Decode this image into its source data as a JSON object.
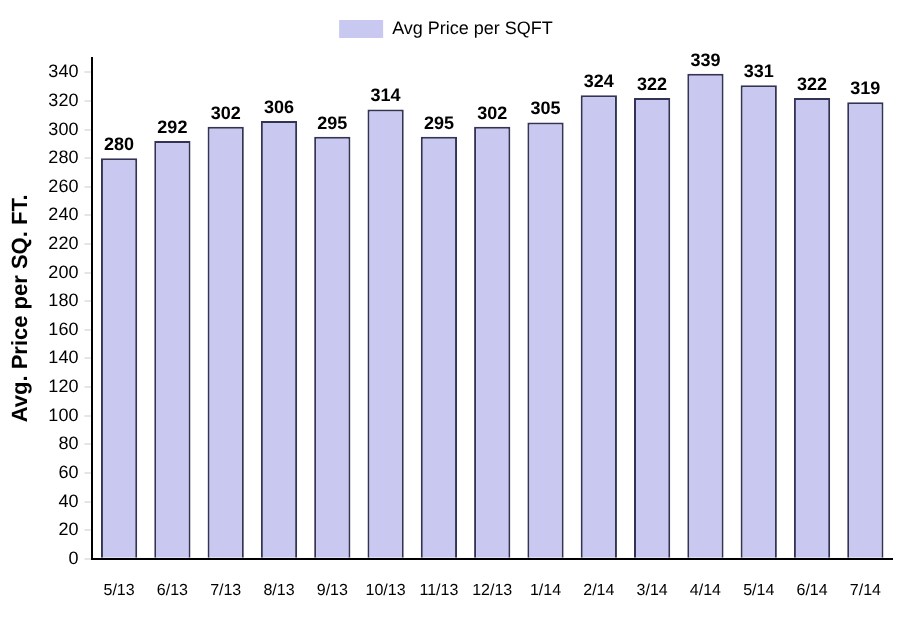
{
  "chart_data": {
    "type": "bar",
    "ylabel": "Avg. Price per SQ. FT.",
    "categories": [
      "5/13",
      "6/13",
      "7/13",
      "8/13",
      "9/13",
      "10/13",
      "11/13",
      "12/13",
      "1/14",
      "2/14",
      "3/14",
      "4/14",
      "5/14",
      "6/14",
      "7/14"
    ],
    "series": [
      {
        "name": "Avg Price per SQFT",
        "color": "#c8c8f0",
        "values": [
          280,
          292,
          302,
          306,
          295,
          314,
          295,
          302,
          305,
          324,
          322,
          339,
          331,
          322,
          319
        ]
      }
    ],
    "ylim": [
      0,
      350
    ],
    "yticks": [
      0,
      20,
      40,
      60,
      80,
      100,
      120,
      140,
      160,
      180,
      200,
      220,
      240,
      260,
      280,
      300,
      320,
      340
    ],
    "data_labels": true,
    "legend": "top",
    "grid": false
  }
}
